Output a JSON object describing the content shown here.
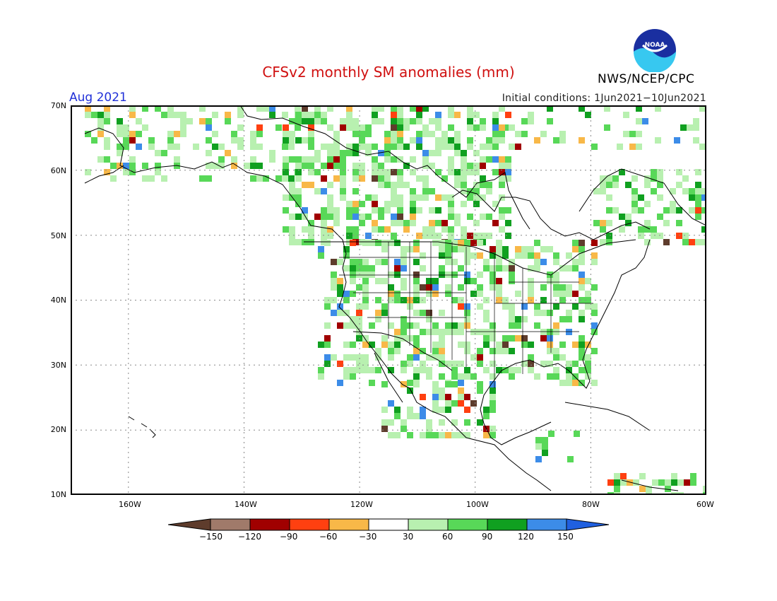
{
  "header": {
    "title": "CFSv2 monthly SM anomalies (mm)",
    "valid_month": "Aug 2021",
    "initial_conditions": "Initial conditions: 1Jun2021−10Jun2021",
    "agency": "NWS/NCEP/CPC",
    "logo_text": "NOAA"
  },
  "map": {
    "lat_labels": [
      "70N",
      "60N",
      "50N",
      "40N",
      "30N",
      "20N",
      "10N"
    ],
    "lon_labels": [
      "160W",
      "140W",
      "120W",
      "100W",
      "80W",
      "60W"
    ],
    "extent": {
      "lon_min": -170,
      "lon_max": -60,
      "lat_min": 10,
      "lat_max": 70
    }
  },
  "colorbar": {
    "labels": [
      "−150",
      "−120",
      "−90",
      "−60",
      "−30",
      "30",
      "60",
      "90",
      "120",
      "150"
    ],
    "colors": [
      "#5e3c2c",
      "#a07a6a",
      "#a00000",
      "#ff4010",
      "#f8b848",
      "#ffffff",
      "#b8f0b0",
      "#58d858",
      "#10a020",
      "#3c8ce8",
      "#2060e0"
    ],
    "colors_note_names": [
      "dark-brown",
      "brown",
      "dark-red",
      "red-orange",
      "orange",
      "white",
      "light-green",
      "green",
      "dark-green",
      "blue",
      "dark-blue"
    ]
  }
}
